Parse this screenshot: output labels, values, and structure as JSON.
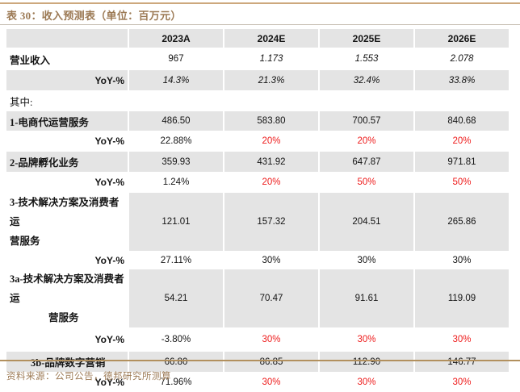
{
  "title": "表 30：收入预测表（单位：百万元）",
  "header": {
    "years": [
      "2023A",
      "2024E",
      "2025E",
      "2026E"
    ]
  },
  "rows": [
    {
      "label": "营业收入",
      "values": [
        "967",
        "1.173",
        "1.553",
        "2.078"
      ]
    },
    {
      "label": "YoY-%",
      "values": [
        "14.3%",
        "21.3%",
        "32.4%",
        "33.8%"
      ]
    },
    {
      "label": "其中:",
      "values": [
        "",
        "",
        "",
        ""
      ]
    },
    {
      "label": "1-电商代运营服务",
      "values": [
        "486.50",
        "583.80",
        "700.57",
        "840.68"
      ]
    },
    {
      "label": "YoY-%",
      "values": [
        "22.88%",
        "20%",
        "20%",
        "20%"
      ]
    },
    {
      "label": "2-品牌孵化业务",
      "values": [
        "359.93",
        "431.92",
        "647.87",
        "971.81"
      ]
    },
    {
      "label": "YoY-%",
      "values": [
        "1.24%",
        "20%",
        "50%",
        "50%"
      ]
    },
    {
      "label": "3-技术解决方案及消费者运",
      "label2": "营服务",
      "values": [
        "121.01",
        "157.32",
        "204.51",
        "265.86"
      ]
    },
    {
      "label": "YoY-%",
      "values": [
        "27.11%",
        "30%",
        "30%",
        "30%"
      ]
    },
    {
      "label": "3a-技术解决方案及消费者运",
      "label2": "营服务",
      "values": [
        "54.21",
        "70.47",
        "91.61",
        "119.09"
      ]
    },
    {
      "label": "YoY-%",
      "values": [
        "-3.80%",
        "30%",
        "30%",
        "30%"
      ]
    },
    {
      "label": "3b-品牌数字营销",
      "values": [
        "66.80",
        "86.85",
        "112.90",
        "146.77"
      ]
    },
    {
      "label": "YoY-%",
      "values": [
        "71.96%",
        "30%",
        "30%",
        "30%"
      ]
    }
  ],
  "footer": {
    "source": "资料来源：公司公告，德邦研究所测算"
  },
  "colors": {
    "accent_brown": "#9c7a55",
    "stripe_gray": "#e4e4e4",
    "forecast_red": "#ee1c1c",
    "top_rule": "#cda87d",
    "title_rule": "#c9c1b6",
    "bottom_rule": "#b2905e"
  }
}
